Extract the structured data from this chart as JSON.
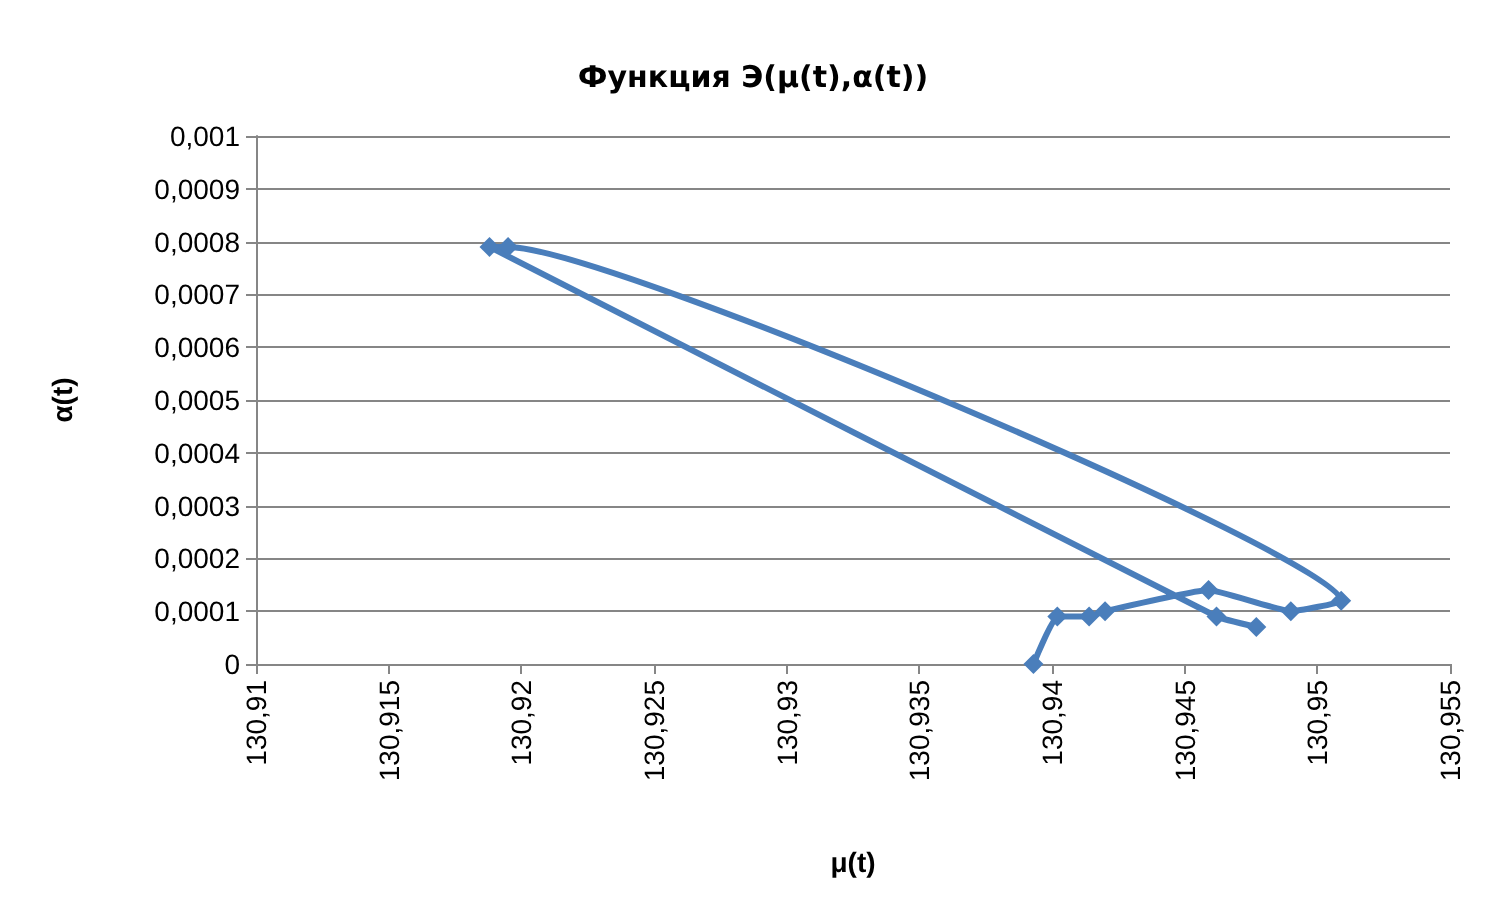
{
  "chart_data": {
    "type": "line",
    "title": "Функция Э(μ(t),α(t))",
    "xlabel": "μ(t)",
    "ylabel": "α(t)",
    "series": [
      {
        "color": "#4a7ebb",
        "x": [
          130.9393,
          130.9402,
          130.9414,
          130.942,
          130.9459,
          130.949,
          130.9509,
          130.9195,
          130.9188,
          130.9462,
          130.9477
        ],
        "values": [
          0,
          9e-05,
          9e-05,
          0.0001,
          0.00014,
          0.0001,
          0.00012,
          0.00079,
          0.00079,
          9e-05,
          7e-05
        ]
      }
    ],
    "xlim": [
      130.91,
      130.955
    ],
    "xticks": [
      {
        "value": 130.91,
        "label": "130,91"
      },
      {
        "value": 130.915,
        "label": "130,915"
      },
      {
        "value": 130.92,
        "label": "130,92"
      },
      {
        "value": 130.925,
        "label": "130,925"
      },
      {
        "value": 130.93,
        "label": "130,93"
      },
      {
        "value": 130.935,
        "label": "130,935"
      },
      {
        "value": 130.94,
        "label": "130,94"
      },
      {
        "value": 130.945,
        "label": "130,945"
      },
      {
        "value": 130.95,
        "label": "130,95"
      },
      {
        "value": 130.955,
        "label": "130,955"
      }
    ],
    "ylim": [
      0,
      0.001
    ],
    "yticks": [
      0,
      {
        "value": 0.0001,
        "label": "0,0001"
      },
      {
        "value": 0.0002,
        "label": "0,0002"
      },
      {
        "value": 0.0003,
        "label": "0,0003"
      },
      {
        "value": 0.0004,
        "label": "0,0004"
      },
      {
        "value": 0.0005,
        "label": "0,0005"
      },
      {
        "value": 0.0006,
        "label": "0,0006"
      },
      {
        "value": 0.0007,
        "label": "0,0007"
      },
      {
        "value": 0.0008,
        "label": "0,0008"
      },
      {
        "value": 0.0009,
        "label": "0,0009"
      },
      {
        "value": 0.001,
        "label": "0,001"
      }
    ],
    "grid": "y",
    "marker": "diamond",
    "line_style": "solid"
  }
}
